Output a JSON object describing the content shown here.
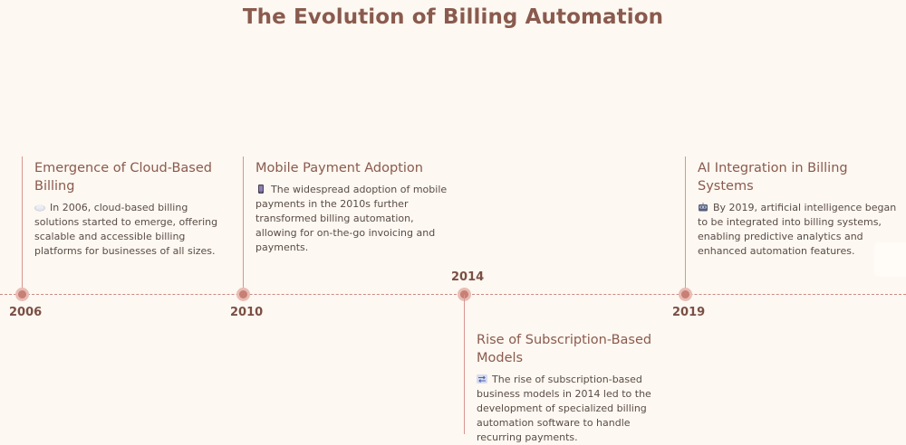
{
  "title": "The Evolution of Billing Automation",
  "events": [
    {
      "year": "2006",
      "title": "Emergence of Cloud-Based Billing",
      "icon": "cloud-icon",
      "description": "In 2006, cloud-based billing solutions started to emerge, offering scalable and accessible billing platforms for businesses of all sizes.",
      "side": "above"
    },
    {
      "year": "2010",
      "title": "Mobile Payment Adoption",
      "icon": "mobile-phone-icon",
      "description": "The widespread adoption of mobile payments in the 2010s further transformed billing automation, allowing for on-the-go invoicing and payments.",
      "side": "above"
    },
    {
      "year": "2014",
      "title": "Rise of Subscription-Based Models",
      "icon": "subscription-arrows-icon",
      "description": "The rise of subscription-based business models in 2014 led to the development of specialized billing automation software to handle recurring payments.",
      "side": "below"
    },
    {
      "year": "2019",
      "title": "AI Integration in Billing Systems",
      "icon": "robot-icon",
      "description": "By 2019, artificial intelligence began to be integrated into billing systems, enabling predictive analytics and enhanced automation features.",
      "side": "above"
    }
  ],
  "colors": {
    "background": "#fdf8f1",
    "title": "#8a5a4e",
    "line": "#d79692",
    "dot": "#c77f76"
  }
}
